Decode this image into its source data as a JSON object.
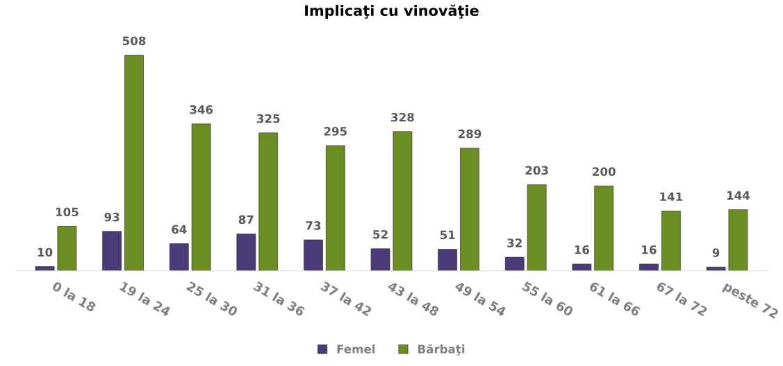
{
  "chart_data": {
    "type": "bar",
    "title": "Implicaţi cu vinovăţie",
    "categories": [
      "0 la 18",
      "19 la 24",
      "25 la 30",
      "31 la 36",
      "37 la 42",
      "43 la 48",
      "49 la 54",
      "55 la 60",
      "61 la 66",
      "67 la 72",
      "peste 72"
    ],
    "series": [
      {
        "name": "Femel",
        "color": "#4b3b78",
        "values": [
          10,
          93,
          64,
          87,
          73,
          52,
          51,
          32,
          16,
          16,
          9
        ]
      },
      {
        "name": "Bărbaţi",
        "color": "#6b8e23",
        "values": [
          105,
          508,
          346,
          325,
          295,
          328,
          289,
          203,
          200,
          141,
          144
        ]
      }
    ],
    "data_labels": true,
    "legend": "bottom",
    "grid": false
  }
}
